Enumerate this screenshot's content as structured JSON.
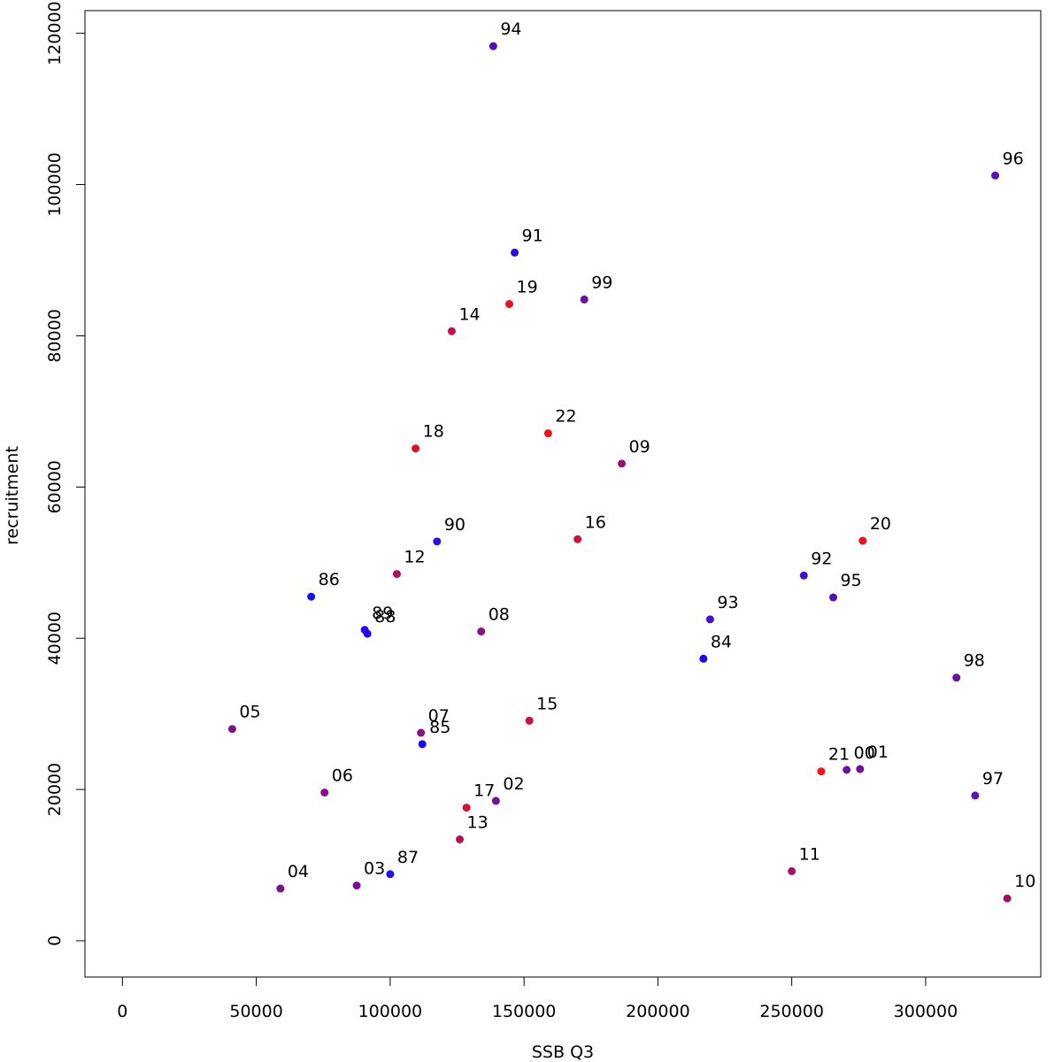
{
  "chart_data": {
    "type": "scatter",
    "xlabel": "SSB Q3",
    "ylabel": "recruitment",
    "xlim": [
      -14000,
      343000
    ],
    "ylim": [
      -4800,
      123000
    ],
    "x_ticks": [
      0,
      50000,
      100000,
      150000,
      200000,
      250000,
      300000
    ],
    "y_ticks": [
      0,
      20000,
      40000,
      60000,
      80000,
      100000,
      120000
    ],
    "grid": false,
    "points": [
      {
        "label": "84",
        "x": 217000,
        "y": 37300,
        "color": "#1a00f5"
      },
      {
        "label": "85",
        "x": 112000,
        "y": 26000,
        "color": "#1608f4"
      },
      {
        "label": "86",
        "x": 70500,
        "y": 45500,
        "color": "#1010f0"
      },
      {
        "label": "87",
        "x": 100000,
        "y": 8800,
        "color": "#2010ec"
      },
      {
        "label": "88",
        "x": 91500,
        "y": 40600,
        "color": "#2408ea"
      },
      {
        "label": "89",
        "x": 90500,
        "y": 41100,
        "color": "#2808e6"
      },
      {
        "label": "90",
        "x": 117500,
        "y": 52800,
        "color": "#3010e0"
      },
      {
        "label": "91",
        "x": 146500,
        "y": 91000,
        "color": "#3008e0"
      },
      {
        "label": "92",
        "x": 254500,
        "y": 48300,
        "color": "#4010d0"
      },
      {
        "label": "93",
        "x": 219500,
        "y": 42500,
        "color": "#4a10c8"
      },
      {
        "label": "94",
        "x": 138500,
        "y": 118300,
        "color": "#5010c0"
      },
      {
        "label": "95",
        "x": 265500,
        "y": 45400,
        "color": "#5410b8"
      },
      {
        "label": "96",
        "x": 326000,
        "y": 101200,
        "color": "#5a10b4"
      },
      {
        "label": "97",
        "x": 318500,
        "y": 19200,
        "color": "#6010b0"
      },
      {
        "label": "98",
        "x": 311500,
        "y": 34800,
        "color": "#6410a8"
      },
      {
        "label": "99",
        "x": 172500,
        "y": 84800,
        "color": "#6a10a0"
      },
      {
        "label": "00",
        "x": 270500,
        "y": 22600,
        "color": "#6c10a0"
      },
      {
        "label": "01",
        "x": 275500,
        "y": 22700,
        "color": "#70109a"
      },
      {
        "label": "02",
        "x": 139500,
        "y": 18500,
        "color": "#741096"
      },
      {
        "label": "03",
        "x": 87500,
        "y": 7300,
        "color": "#781092"
      },
      {
        "label": "04",
        "x": 59000,
        "y": 6900,
        "color": "#7c108e"
      },
      {
        "label": "05",
        "x": 41000,
        "y": 28000,
        "color": "#80108a"
      },
      {
        "label": "06",
        "x": 75500,
        "y": 19600,
        "color": "#861084"
      },
      {
        "label": "07",
        "x": 111500,
        "y": 27500,
        "color": "#8a1080"
      },
      {
        "label": "08",
        "x": 134000,
        "y": 40900,
        "color": "#90107a"
      },
      {
        "label": "09",
        "x": 186500,
        "y": 63100,
        "color": "#961074"
      },
      {
        "label": "10",
        "x": 330500,
        "y": 5600,
        "color": "#a0106a"
      },
      {
        "label": "11",
        "x": 250000,
        "y": 9200,
        "color": "#a81062"
      },
      {
        "label": "12",
        "x": 102500,
        "y": 48500,
        "color": "#b0105a"
      },
      {
        "label": "13",
        "x": 126000,
        "y": 13400,
        "color": "#b81052"
      },
      {
        "label": "14",
        "x": 123000,
        "y": 80600,
        "color": "#c0104a"
      },
      {
        "label": "15",
        "x": 152000,
        "y": 29100,
        "color": "#c81042"
      },
      {
        "label": "16",
        "x": 170000,
        "y": 53100,
        "color": "#d0103a"
      },
      {
        "label": "17",
        "x": 128500,
        "y": 17600,
        "color": "#d81032"
      },
      {
        "label": "18",
        "x": 109500,
        "y": 65100,
        "color": "#e0102a"
      },
      {
        "label": "19",
        "x": 144500,
        "y": 84200,
        "color": "#e81022"
      },
      {
        "label": "20",
        "x": 276500,
        "y": 52900,
        "color": "#ee101c"
      },
      {
        "label": "21",
        "x": 261000,
        "y": 22400,
        "color": "#f41414"
      },
      {
        "label": "22",
        "x": 159000,
        "y": 67100,
        "color": "#f81010"
      }
    ]
  }
}
